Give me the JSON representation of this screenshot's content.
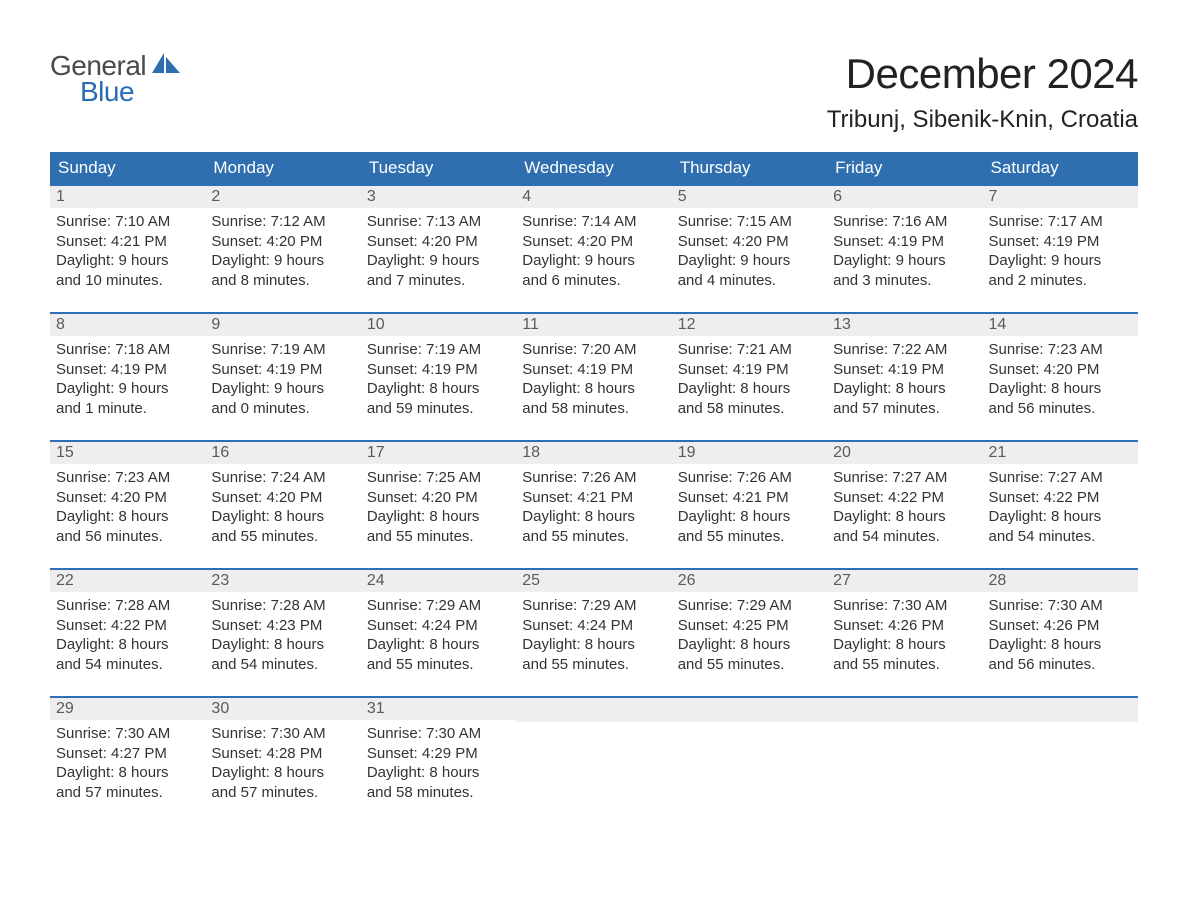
{
  "brand": {
    "text_general": "General",
    "text_blue": "Blue",
    "icon_color": "#2f6fb0"
  },
  "header": {
    "month_title": "December 2024",
    "location": "Tribunj, Sibenik-Knin, Croatia"
  },
  "style": {
    "header_bg": "#2f6fb0",
    "header_text": "#ffffff",
    "row_border": "#2f6fb0",
    "daynum_bg": "#eeeeee",
    "daynum_text": "#5a5a5a",
    "body_text": "#333333",
    "background": "#ffffff",
    "font_family": "Arial, Helvetica, sans-serif",
    "title_fontsize": 42,
    "location_fontsize": 24,
    "weekday_fontsize": 17,
    "daynum_fontsize": 16,
    "cell_fontsize": 15
  },
  "calendar": {
    "weekdays": [
      "Sunday",
      "Monday",
      "Tuesday",
      "Wednesday",
      "Thursday",
      "Friday",
      "Saturday"
    ],
    "weeks": [
      [
        {
          "num": "1",
          "sunrise": "Sunrise: 7:10 AM",
          "sunset": "Sunset: 4:21 PM",
          "daylight1": "Daylight: 9 hours",
          "daylight2": "and 10 minutes."
        },
        {
          "num": "2",
          "sunrise": "Sunrise: 7:12 AM",
          "sunset": "Sunset: 4:20 PM",
          "daylight1": "Daylight: 9 hours",
          "daylight2": "and 8 minutes."
        },
        {
          "num": "3",
          "sunrise": "Sunrise: 7:13 AM",
          "sunset": "Sunset: 4:20 PM",
          "daylight1": "Daylight: 9 hours",
          "daylight2": "and 7 minutes."
        },
        {
          "num": "4",
          "sunrise": "Sunrise: 7:14 AM",
          "sunset": "Sunset: 4:20 PM",
          "daylight1": "Daylight: 9 hours",
          "daylight2": "and 6 minutes."
        },
        {
          "num": "5",
          "sunrise": "Sunrise: 7:15 AM",
          "sunset": "Sunset: 4:20 PM",
          "daylight1": "Daylight: 9 hours",
          "daylight2": "and 4 minutes."
        },
        {
          "num": "6",
          "sunrise": "Sunrise: 7:16 AM",
          "sunset": "Sunset: 4:19 PM",
          "daylight1": "Daylight: 9 hours",
          "daylight2": "and 3 minutes."
        },
        {
          "num": "7",
          "sunrise": "Sunrise: 7:17 AM",
          "sunset": "Sunset: 4:19 PM",
          "daylight1": "Daylight: 9 hours",
          "daylight2": "and 2 minutes."
        }
      ],
      [
        {
          "num": "8",
          "sunrise": "Sunrise: 7:18 AM",
          "sunset": "Sunset: 4:19 PM",
          "daylight1": "Daylight: 9 hours",
          "daylight2": "and 1 minute."
        },
        {
          "num": "9",
          "sunrise": "Sunrise: 7:19 AM",
          "sunset": "Sunset: 4:19 PM",
          "daylight1": "Daylight: 9 hours",
          "daylight2": "and 0 minutes."
        },
        {
          "num": "10",
          "sunrise": "Sunrise: 7:19 AM",
          "sunset": "Sunset: 4:19 PM",
          "daylight1": "Daylight: 8 hours",
          "daylight2": "and 59 minutes."
        },
        {
          "num": "11",
          "sunrise": "Sunrise: 7:20 AM",
          "sunset": "Sunset: 4:19 PM",
          "daylight1": "Daylight: 8 hours",
          "daylight2": "and 58 minutes."
        },
        {
          "num": "12",
          "sunrise": "Sunrise: 7:21 AM",
          "sunset": "Sunset: 4:19 PM",
          "daylight1": "Daylight: 8 hours",
          "daylight2": "and 58 minutes."
        },
        {
          "num": "13",
          "sunrise": "Sunrise: 7:22 AM",
          "sunset": "Sunset: 4:19 PM",
          "daylight1": "Daylight: 8 hours",
          "daylight2": "and 57 minutes."
        },
        {
          "num": "14",
          "sunrise": "Sunrise: 7:23 AM",
          "sunset": "Sunset: 4:20 PM",
          "daylight1": "Daylight: 8 hours",
          "daylight2": "and 56 minutes."
        }
      ],
      [
        {
          "num": "15",
          "sunrise": "Sunrise: 7:23 AM",
          "sunset": "Sunset: 4:20 PM",
          "daylight1": "Daylight: 8 hours",
          "daylight2": "and 56 minutes."
        },
        {
          "num": "16",
          "sunrise": "Sunrise: 7:24 AM",
          "sunset": "Sunset: 4:20 PM",
          "daylight1": "Daylight: 8 hours",
          "daylight2": "and 55 minutes."
        },
        {
          "num": "17",
          "sunrise": "Sunrise: 7:25 AM",
          "sunset": "Sunset: 4:20 PM",
          "daylight1": "Daylight: 8 hours",
          "daylight2": "and 55 minutes."
        },
        {
          "num": "18",
          "sunrise": "Sunrise: 7:26 AM",
          "sunset": "Sunset: 4:21 PM",
          "daylight1": "Daylight: 8 hours",
          "daylight2": "and 55 minutes."
        },
        {
          "num": "19",
          "sunrise": "Sunrise: 7:26 AM",
          "sunset": "Sunset: 4:21 PM",
          "daylight1": "Daylight: 8 hours",
          "daylight2": "and 55 minutes."
        },
        {
          "num": "20",
          "sunrise": "Sunrise: 7:27 AM",
          "sunset": "Sunset: 4:22 PM",
          "daylight1": "Daylight: 8 hours",
          "daylight2": "and 54 minutes."
        },
        {
          "num": "21",
          "sunrise": "Sunrise: 7:27 AM",
          "sunset": "Sunset: 4:22 PM",
          "daylight1": "Daylight: 8 hours",
          "daylight2": "and 54 minutes."
        }
      ],
      [
        {
          "num": "22",
          "sunrise": "Sunrise: 7:28 AM",
          "sunset": "Sunset: 4:22 PM",
          "daylight1": "Daylight: 8 hours",
          "daylight2": "and 54 minutes."
        },
        {
          "num": "23",
          "sunrise": "Sunrise: 7:28 AM",
          "sunset": "Sunset: 4:23 PM",
          "daylight1": "Daylight: 8 hours",
          "daylight2": "and 54 minutes."
        },
        {
          "num": "24",
          "sunrise": "Sunrise: 7:29 AM",
          "sunset": "Sunset: 4:24 PM",
          "daylight1": "Daylight: 8 hours",
          "daylight2": "and 55 minutes."
        },
        {
          "num": "25",
          "sunrise": "Sunrise: 7:29 AM",
          "sunset": "Sunset: 4:24 PM",
          "daylight1": "Daylight: 8 hours",
          "daylight2": "and 55 minutes."
        },
        {
          "num": "26",
          "sunrise": "Sunrise: 7:29 AM",
          "sunset": "Sunset: 4:25 PM",
          "daylight1": "Daylight: 8 hours",
          "daylight2": "and 55 minutes."
        },
        {
          "num": "27",
          "sunrise": "Sunrise: 7:30 AM",
          "sunset": "Sunset: 4:26 PM",
          "daylight1": "Daylight: 8 hours",
          "daylight2": "and 55 minutes."
        },
        {
          "num": "28",
          "sunrise": "Sunrise: 7:30 AM",
          "sunset": "Sunset: 4:26 PM",
          "daylight1": "Daylight: 8 hours",
          "daylight2": "and 56 minutes."
        }
      ],
      [
        {
          "num": "29",
          "sunrise": "Sunrise: 7:30 AM",
          "sunset": "Sunset: 4:27 PM",
          "daylight1": "Daylight: 8 hours",
          "daylight2": "and 57 minutes."
        },
        {
          "num": "30",
          "sunrise": "Sunrise: 7:30 AM",
          "sunset": "Sunset: 4:28 PM",
          "daylight1": "Daylight: 8 hours",
          "daylight2": "and 57 minutes."
        },
        {
          "num": "31",
          "sunrise": "Sunrise: 7:30 AM",
          "sunset": "Sunset: 4:29 PM",
          "daylight1": "Daylight: 8 hours",
          "daylight2": "and 58 minutes."
        },
        null,
        null,
        null,
        null
      ]
    ]
  }
}
